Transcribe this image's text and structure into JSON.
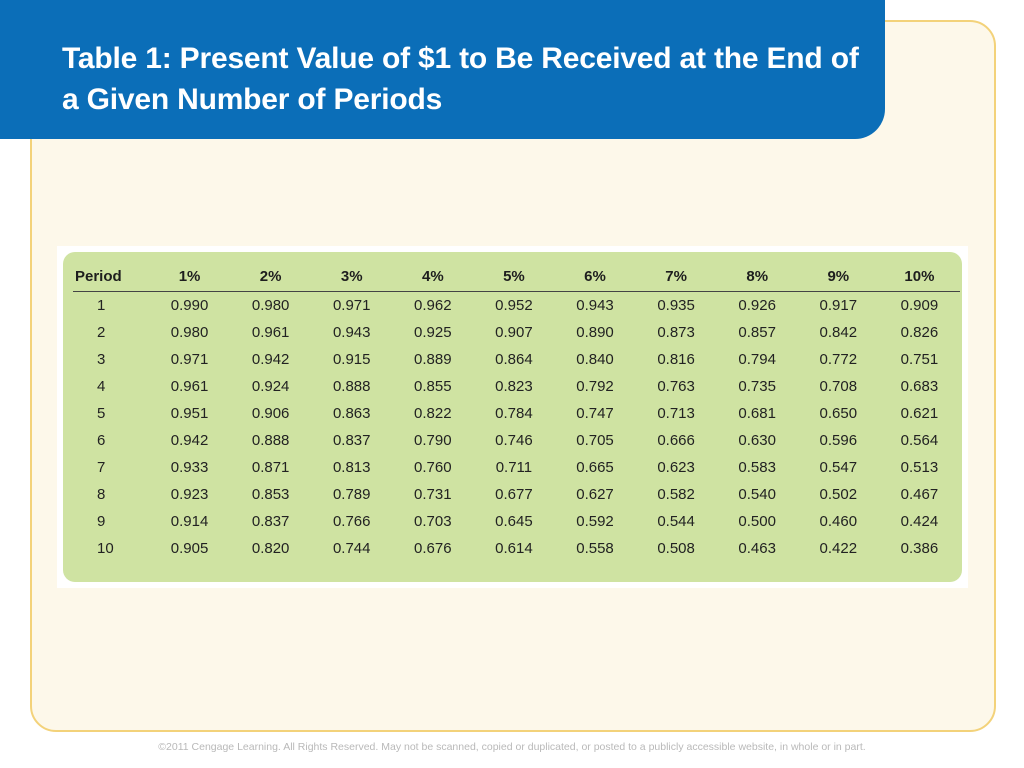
{
  "slide": {
    "title": "Table 1: Present Value of $1 to Be Received at the End of a Given Number of Periods",
    "footer": "©2011 Cengage Learning. All Rights Reserved. May not be scanned, copied or duplicated, or posted to a publicly accessible website, in whole or in part."
  },
  "colors": {
    "title_bar": "#0b6eb8",
    "panel_background": "#fdf8ea",
    "panel_border": "#f3d27a",
    "table_background": "#cfe3a2"
  },
  "table": {
    "headers": [
      "Period",
      "1%",
      "2%",
      "3%",
      "4%",
      "5%",
      "6%",
      "7%",
      "8%",
      "9%",
      "10%"
    ],
    "rows": [
      [
        "1",
        "0.990",
        "0.980",
        "0.971",
        "0.962",
        "0.952",
        "0.943",
        "0.935",
        "0.926",
        "0.917",
        "0.909"
      ],
      [
        "2",
        "0.980",
        "0.961",
        "0.943",
        "0.925",
        "0.907",
        "0.890",
        "0.873",
        "0.857",
        "0.842",
        "0.826"
      ],
      [
        "3",
        "0.971",
        "0.942",
        "0.915",
        "0.889",
        "0.864",
        "0.840",
        "0.816",
        "0.794",
        "0.772",
        "0.751"
      ],
      [
        "4",
        "0.961",
        "0.924",
        "0.888",
        "0.855",
        "0.823",
        "0.792",
        "0.763",
        "0.735",
        "0.708",
        "0.683"
      ],
      [
        "5",
        "0.951",
        "0.906",
        "0.863",
        "0.822",
        "0.784",
        "0.747",
        "0.713",
        "0.681",
        "0.650",
        "0.621"
      ],
      [
        "6",
        "0.942",
        "0.888",
        "0.837",
        "0.790",
        "0.746",
        "0.705",
        "0.666",
        "0.630",
        "0.596",
        "0.564"
      ],
      [
        "7",
        "0.933",
        "0.871",
        "0.813",
        "0.760",
        "0.711",
        "0.665",
        "0.623",
        "0.583",
        "0.547",
        "0.513"
      ],
      [
        "8",
        "0.923",
        "0.853",
        "0.789",
        "0.731",
        "0.677",
        "0.627",
        "0.582",
        "0.540",
        "0.502",
        "0.467"
      ],
      [
        "9",
        "0.914",
        "0.837",
        "0.766",
        "0.703",
        "0.645",
        "0.592",
        "0.544",
        "0.500",
        "0.460",
        "0.424"
      ],
      [
        "10",
        "0.905",
        "0.820",
        "0.744",
        "0.676",
        "0.614",
        "0.558",
        "0.508",
        "0.463",
        "0.422",
        "0.386"
      ]
    ]
  }
}
